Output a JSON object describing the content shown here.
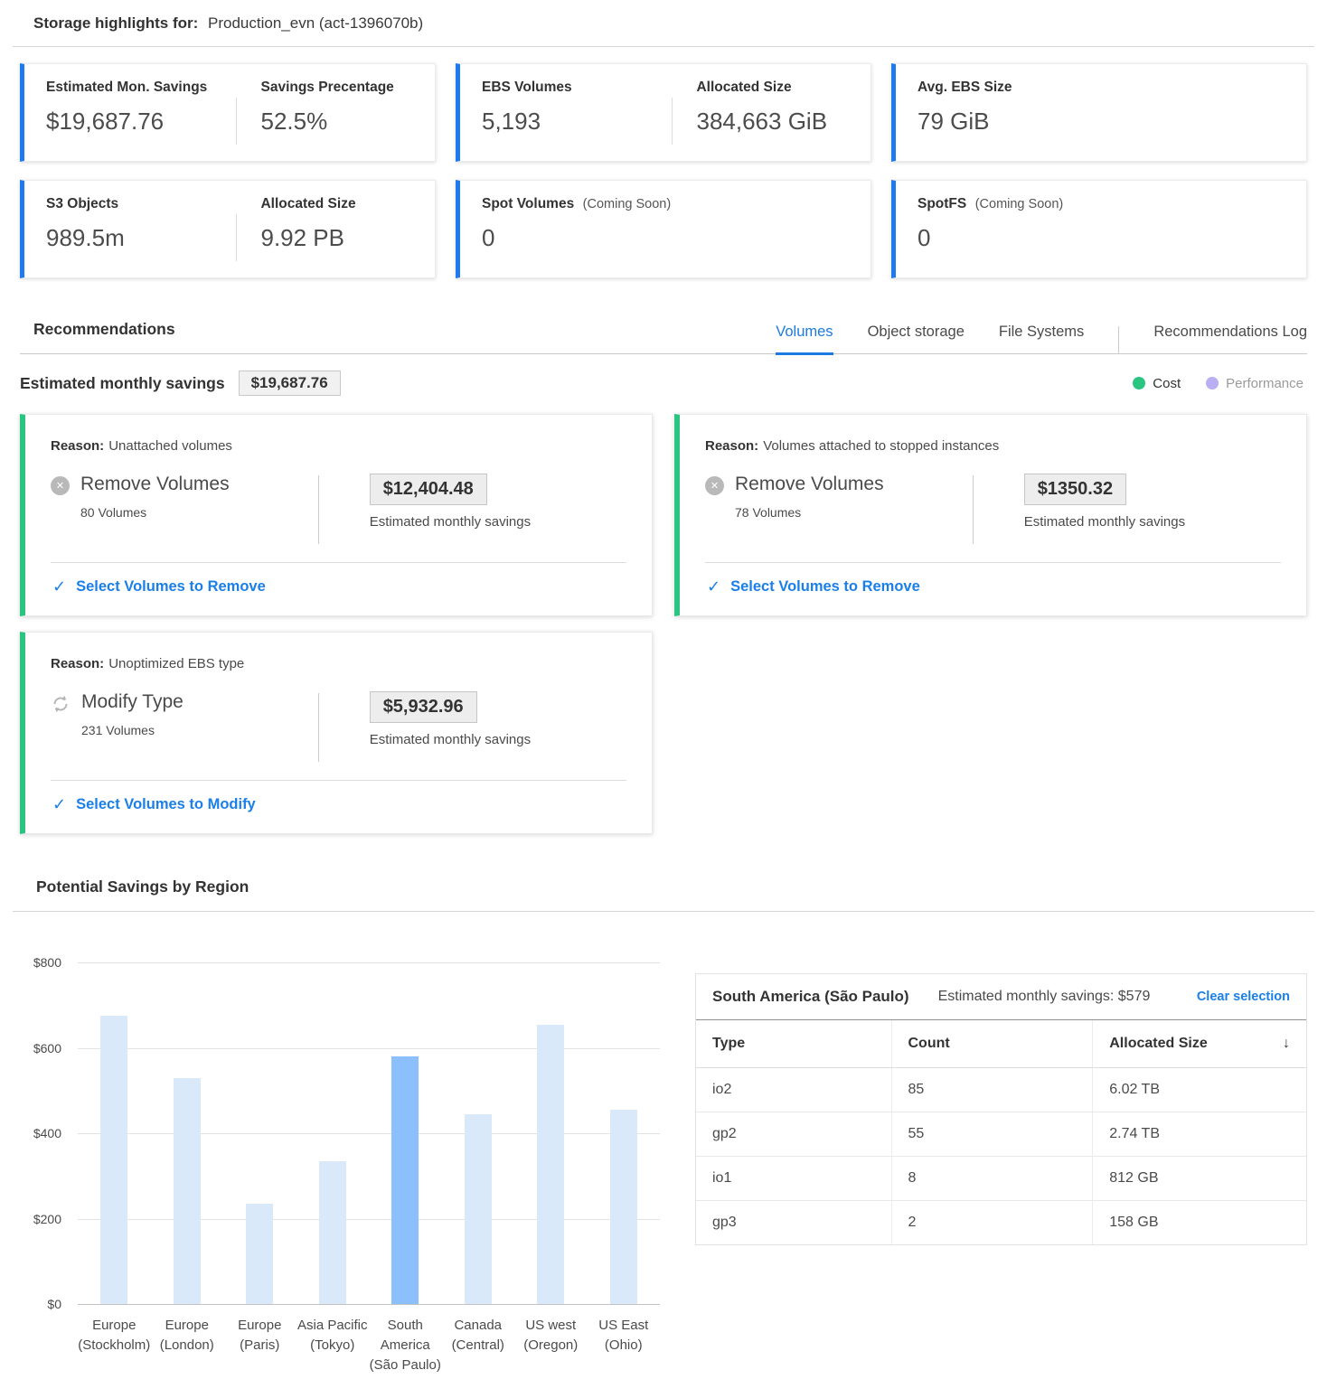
{
  "colors": {
    "accent_blue": "#1e7af0",
    "tab_blue": "#1d7ae0",
    "link_blue": "#1a7fe8",
    "green": "#2ac581",
    "purple": "#b9aff2",
    "bar": "#d9e9fa",
    "bar_selected": "#8bc0fc"
  },
  "page_header": {
    "label": "Storage highlights for:",
    "value": "Production_evn (act-1396070b)"
  },
  "stat_cards": {
    "row1": [
      {
        "metrics": [
          {
            "label": "Estimated Mon. Savings",
            "value": "$19,687.76"
          },
          {
            "label": "Savings Precentage",
            "value": "52.5%"
          }
        ]
      },
      {
        "metrics": [
          {
            "label": "EBS Volumes",
            "value": "5,193"
          },
          {
            "label": "Allocated Size",
            "value": "384,663 GiB"
          }
        ]
      },
      {
        "metrics": [
          {
            "label": "Avg. EBS Size",
            "value": "79 GiB"
          }
        ]
      }
    ],
    "row2": [
      {
        "metrics": [
          {
            "label": "S3 Objects",
            "value": "989.5m"
          },
          {
            "label": "Allocated Size",
            "value": "9.92 PB"
          }
        ]
      },
      {
        "metrics": [
          {
            "label": "Spot Volumes",
            "note": "(Coming Soon)",
            "value": "0"
          }
        ]
      },
      {
        "metrics": [
          {
            "label": "SpotFS",
            "note": "(Coming Soon)",
            "value": "0"
          }
        ]
      }
    ]
  },
  "recommendations": {
    "title": "Recommendations",
    "tabs": [
      {
        "label": "Volumes",
        "active": true
      },
      {
        "label": "Object storage",
        "active": false
      },
      {
        "label": "File Systems",
        "active": false
      },
      {
        "label": "Recommendations Log",
        "active": false
      }
    ],
    "savings_label": "Estimated monthly savings",
    "savings_value": "$19,687.76",
    "legend": [
      {
        "label": "Cost",
        "color": "#2ac581"
      },
      {
        "label": "Performance",
        "color": "#b9aff2"
      }
    ],
    "cards": [
      {
        "reason_label": "Reason:",
        "reason": "Unattached volumes",
        "icon": "remove-circle-icon",
        "action": "Remove Volumes",
        "count": "80 Volumes",
        "amount": "$12,404.48",
        "amount_caption": "Estimated monthly savings",
        "link": "Select Volumes to Remove"
      },
      {
        "reason_label": "Reason:",
        "reason": "Volumes attached to stopped instances",
        "icon": "remove-circle-icon",
        "action": "Remove Volumes",
        "count": "78 Volumes",
        "amount": "$1350.32",
        "amount_caption": "Estimated monthly savings",
        "link": "Select Volumes to Remove"
      },
      {
        "reason_label": "Reason:",
        "reason": "Unoptimized EBS type",
        "icon": "modify-refresh-icon",
        "action": "Modify Type",
        "count": "231 Volumes",
        "amount": "$5,932.96",
        "amount_caption": "Estimated monthly savings",
        "link": "Select Volumes to Modify"
      }
    ]
  },
  "region_section_title": "Potential Savings by Region",
  "chart_data": {
    "type": "bar",
    "title": "Potential Savings by Region",
    "categories": [
      "Europe (Stockholm)",
      "Europe (London)",
      "Europe (Paris)",
      "Asia Pacific (Tokyo)",
      "South America (São Paulo)",
      "Canada (Central)",
      "US west (Oregon)",
      "US East (Ohio)"
    ],
    "category_lines": [
      [
        "Europe",
        "(Stockholm)"
      ],
      [
        "Europe",
        "(London)"
      ],
      [
        "Europe",
        "(Paris)"
      ],
      [
        "Asia Pacific",
        "(Tokyo)"
      ],
      [
        "South America",
        "(São Paulo)"
      ],
      [
        "Canada",
        "(Central)"
      ],
      [
        "US west",
        "(Oregon)"
      ],
      [
        "US East",
        "(Ohio)"
      ]
    ],
    "values": [
      675,
      530,
      235,
      335,
      579,
      445,
      655,
      455
    ],
    "unit": "USD",
    "selected_index": 4,
    "selected_category": "South America (São Paulo)",
    "y_ticks": [
      "$800",
      "$600",
      "$400",
      "$200",
      "$0"
    ],
    "ylim": [
      0,
      800
    ],
    "grid": true,
    "legend_position": "none",
    "bar_color": "#d9e9fa",
    "bar_color_selected": "#8bc0fc"
  },
  "detail_table": {
    "region": "South America (São Paulo)",
    "subtitle": "Estimated monthly savings: $579",
    "clear_link": "Clear selection",
    "columns": [
      "Type",
      "Count",
      "Allocated Size"
    ],
    "sort_icon": "↓",
    "rows": [
      {
        "type": "io2",
        "count": "85",
        "size": "6.02 TB"
      },
      {
        "type": "gp2",
        "count": "55",
        "size": "2.74 TB"
      },
      {
        "type": "io1",
        "count": "8",
        "size": "812 GB"
      },
      {
        "type": "gp3",
        "count": "2",
        "size": "158 GB"
      }
    ]
  }
}
